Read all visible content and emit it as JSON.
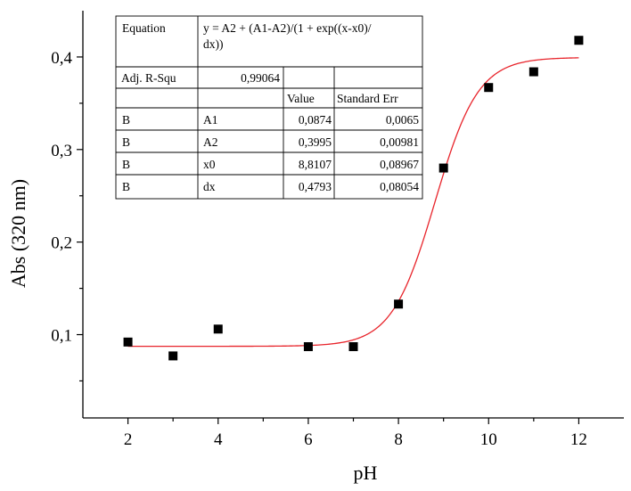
{
  "chart_data": {
    "type": "scatter",
    "xlabel": "pH",
    "ylabel": "Abs (320 nm)",
    "xlim": [
      1,
      13
    ],
    "ylim": [
      0.01,
      0.45
    ],
    "xticks": [
      2,
      4,
      6,
      8,
      10,
      12
    ],
    "xtick_labels": [
      "2",
      "4",
      "6",
      "8",
      "10",
      "12"
    ],
    "xminor_ticks": [
      3,
      5,
      7,
      9,
      11
    ],
    "yticks": [
      0.1,
      0.2,
      0.3,
      0.4
    ],
    "ytick_labels": [
      "0,1",
      "0,2",
      "0,3",
      "0,4"
    ],
    "yminor_ticks": [
      0.05,
      0.15,
      0.25,
      0.35
    ],
    "grid": false,
    "series": [
      {
        "type": "scatter",
        "marker": "square",
        "color": "#000000",
        "x": [
          2,
          3,
          4,
          6,
          7,
          8,
          9,
          10,
          11,
          12
        ],
        "y": [
          0.092,
          0.077,
          0.106,
          0.087,
          0.087,
          0.133,
          0.28,
          0.367,
          0.384,
          0.418
        ]
      },
      {
        "type": "line",
        "color": "#e8242b",
        "model": "boltzmann",
        "x_range": [
          2,
          12
        ],
        "params": {
          "A1": 0.0874,
          "A2": 0.3995,
          "x0": 8.8107,
          "dx": 0.4793
        }
      }
    ],
    "fit_table": {
      "equation_label": "Equation",
      "equation_line1": "y = A2 + (A1-A2)/(1 + exp((x-x0)/",
      "equation_line2": "dx))",
      "r2_label": "Adj. R-Squ",
      "r2_value": "0,99064",
      "header_value": "Value",
      "header_stderr": "Standard Err",
      "rows": [
        {
          "dataset": "B",
          "param": "A1",
          "value": "0,0874",
          "stderr": "0,0065"
        },
        {
          "dataset": "B",
          "param": "A2",
          "value": "0,3995",
          "stderr": "0,00981"
        },
        {
          "dataset": "B",
          "param": "x0",
          "value": "8,8107",
          "stderr": "0,08967"
        },
        {
          "dataset": "B",
          "param": "dx",
          "value": "0,4793",
          "stderr": "0,08054"
        }
      ]
    }
  }
}
